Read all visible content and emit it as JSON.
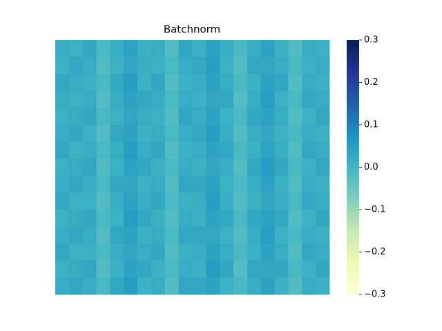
{
  "chart_data": {
    "type": "heatmap",
    "title": "Batchnorm",
    "values": [
      [
        0.02,
        0.01,
        0.03,
        -0.01,
        0.02,
        0.04,
        0.01,
        0.02,
        -0.02,
        0.03,
        0.01,
        0.04,
        0.02,
        -0.01,
        0.02,
        0.04,
        0.01,
        -0.02,
        0.02,
        0.01
      ],
      [
        0.01,
        0.03,
        0.02,
        -0.02,
        0.01,
        0.03,
        0.02,
        0.01,
        -0.01,
        0.02,
        0.03,
        0.05,
        0.01,
        -0.02,
        0.03,
        0.03,
        0.02,
        -0.01,
        0.01,
        0.02
      ],
      [
        0.03,
        0.02,
        0.01,
        -0.01,
        0.03,
        0.05,
        0.01,
        0.03,
        -0.02,
        0.01,
        0.02,
        0.04,
        0.02,
        -0.01,
        0.01,
        0.04,
        0.03,
        -0.02,
        0.02,
        0.01
      ],
      [
        0.02,
        0.01,
        0.02,
        -0.02,
        0.02,
        0.04,
        0.03,
        0.02,
        -0.01,
        0.02,
        0.01,
        0.03,
        0.03,
        -0.02,
        0.02,
        0.05,
        0.01,
        -0.01,
        0.03,
        0.02
      ],
      [
        0.01,
        0.02,
        0.03,
        -0.01,
        0.01,
        0.03,
        0.02,
        0.01,
        -0.02,
        0.03,
        0.02,
        0.04,
        0.01,
        -0.01,
        0.03,
        0.04,
        0.02,
        -0.02,
        0.01,
        0.03
      ],
      [
        0.02,
        0.03,
        0.01,
        -0.02,
        0.03,
        0.04,
        0.01,
        0.02,
        -0.01,
        0.02,
        0.03,
        0.05,
        0.02,
        -0.02,
        0.02,
        0.03,
        0.01,
        -0.01,
        0.02,
        0.01
      ],
      [
        0.03,
        0.01,
        0.02,
        -0.01,
        0.02,
        0.05,
        0.02,
        0.03,
        -0.02,
        0.01,
        0.02,
        0.04,
        0.03,
        -0.01,
        0.01,
        0.04,
        0.02,
        -0.02,
        0.03,
        0.02
      ],
      [
        0.01,
        0.02,
        0.03,
        -0.02,
        0.01,
        0.04,
        0.03,
        0.01,
        -0.01,
        0.02,
        0.01,
        0.03,
        0.02,
        -0.02,
        0.03,
        0.05,
        0.03,
        -0.01,
        0.01,
        0.03
      ],
      [
        0.02,
        0.03,
        0.02,
        -0.01,
        0.03,
        0.03,
        0.01,
        0.02,
        -0.02,
        0.03,
        0.03,
        0.04,
        0.01,
        -0.01,
        0.02,
        0.04,
        0.01,
        -0.02,
        0.02,
        0.01
      ],
      [
        0.03,
        0.01,
        0.01,
        -0.02,
        0.02,
        0.04,
        0.02,
        0.03,
        -0.01,
        0.01,
        0.02,
        0.05,
        0.02,
        -0.02,
        0.01,
        0.03,
        0.02,
        -0.01,
        0.03,
        0.02
      ],
      [
        0.01,
        0.02,
        0.03,
        -0.01,
        0.01,
        0.05,
        0.03,
        0.01,
        -0.02,
        0.02,
        0.01,
        0.04,
        0.03,
        -0.01,
        0.03,
        0.04,
        0.03,
        -0.02,
        0.01,
        0.03
      ],
      [
        0.02,
        0.03,
        0.02,
        -0.02,
        0.03,
        0.04,
        0.01,
        0.02,
        -0.01,
        0.03,
        0.03,
        0.03,
        0.01,
        -0.02,
        0.02,
        0.05,
        0.01,
        -0.01,
        0.02,
        0.01
      ],
      [
        0.03,
        0.01,
        0.01,
        -0.01,
        0.02,
        0.03,
        0.02,
        0.03,
        -0.02,
        0.01,
        0.02,
        0.04,
        0.02,
        -0.01,
        0.01,
        0.04,
        0.02,
        -0.02,
        0.03,
        0.02
      ],
      [
        0.01,
        0.02,
        0.03,
        -0.02,
        0.01,
        0.04,
        0.03,
        0.01,
        -0.01,
        0.02,
        0.01,
        0.05,
        0.03,
        -0.02,
        0.03,
        0.03,
        0.03,
        -0.01,
        0.01,
        0.03
      ],
      [
        0.02,
        0.03,
        0.02,
        -0.01,
        0.03,
        0.05,
        0.01,
        0.02,
        -0.02,
        0.03,
        0.03,
        0.04,
        0.01,
        -0.01,
        0.02,
        0.04,
        0.01,
        -0.02,
        0.02,
        0.01
      ]
    ],
    "colorscale": [
      "#ffffd9",
      "#edf8b1",
      "#c7e9b4",
      "#7fcdbb",
      "#41b6c4",
      "#1d91c0",
      "#225ea8",
      "#253494",
      "#081d58"
    ],
    "clim": [
      -0.3,
      0.3
    ],
    "cticks": [
      {
        "value": -0.3,
        "label": "−0.3"
      },
      {
        "value": -0.2,
        "label": "−0.2"
      },
      {
        "value": -0.1,
        "label": "−0.1"
      },
      {
        "value": 0,
        "label": "0.0"
      },
      0.1,
      0.2,
      0.3
    ]
  }
}
